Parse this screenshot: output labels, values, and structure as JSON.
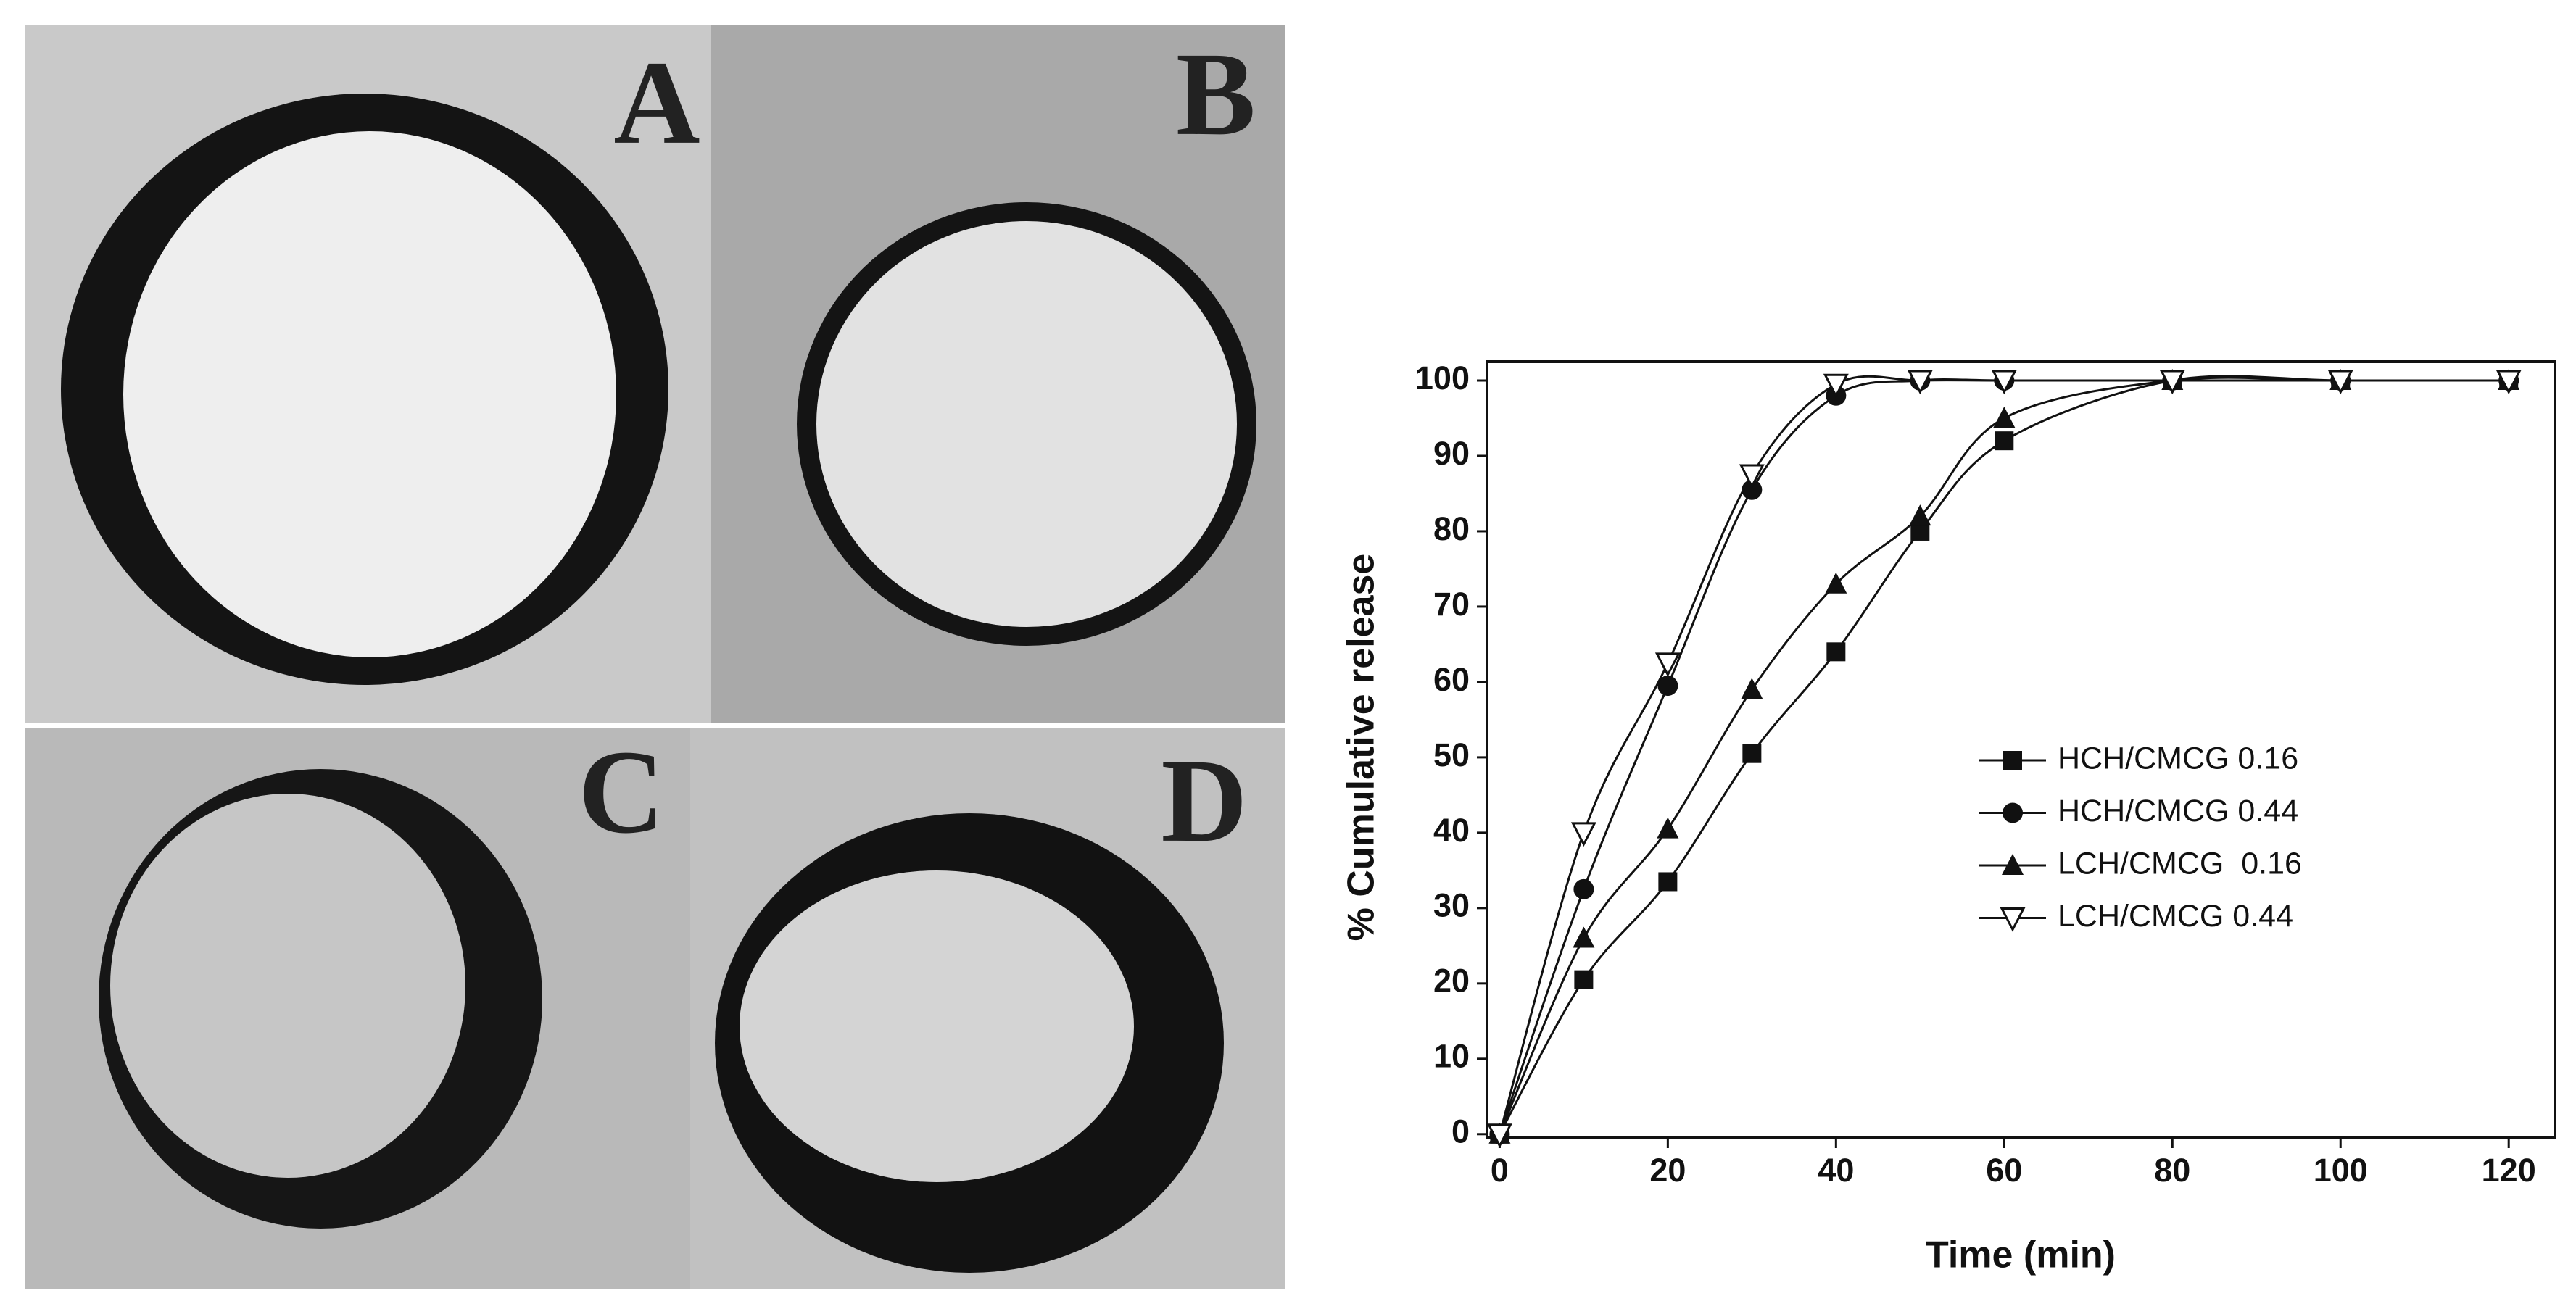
{
  "figure_panels": [
    "A",
    "B",
    "C",
    "D"
  ],
  "chart_data": {
    "type": "line",
    "x_label": "Time (min)",
    "y_label": "% Cumulative release",
    "x": [
      0,
      10,
      20,
      30,
      40,
      50,
      60,
      80,
      100,
      120
    ],
    "series": [
      {
        "name": "HCH/CMCG 0.16",
        "marker": "square",
        "color": "#111111",
        "values": [
          0,
          20.5,
          33.5,
          50.5,
          64,
          80,
          92,
          100,
          100,
          100
        ]
      },
      {
        "name": "HCH/CMCG 0.44",
        "marker": "circle",
        "color": "#111111",
        "values": [
          0,
          32.5,
          59.5,
          85.5,
          98,
          100,
          100,
          100,
          100,
          100
        ]
      },
      {
        "name": "LCH/CMCG  0.16",
        "marker": "triangle",
        "color": "#111111",
        "values": [
          0,
          26,
          40.5,
          59,
          73,
          82,
          95,
          100,
          100,
          100
        ]
      },
      {
        "name": "LCH/CMCG 0.44",
        "marker": "open-down-triangle",
        "color": "#111111",
        "values": [
          0,
          40,
          62.5,
          87.5,
          99.5,
          100,
          100,
          100,
          100,
          100
        ]
      }
    ],
    "xlim": [
      -1.5,
      125.5
    ],
    "ylim": [
      -0.5,
      102.5
    ],
    "xticks": [
      0,
      20,
      40,
      60,
      80,
      100,
      120
    ],
    "yticks": [
      0,
      10,
      20,
      30,
      40,
      50,
      60,
      70,
      80,
      90,
      100
    ],
    "grid": false,
    "smooth": true
  }
}
